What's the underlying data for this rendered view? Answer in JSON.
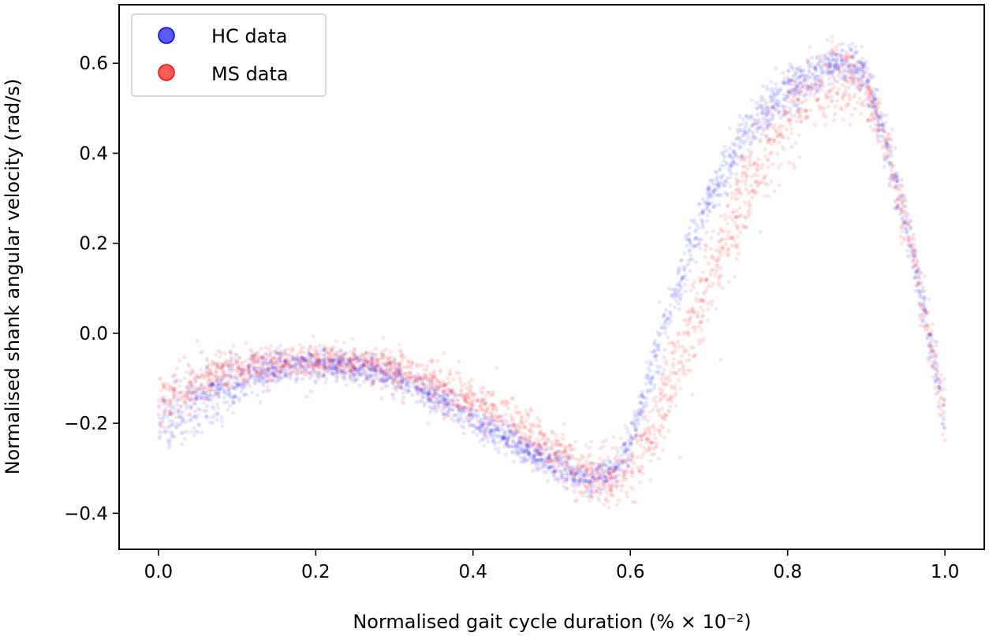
{
  "chart_data": {
    "type": "scatter",
    "xlabel": "Normalised gait cycle duration (% × 10⁻²)",
    "ylabel": "Normalised shank angular velocity (rad/s)",
    "xlim": [
      -0.05,
      1.05
    ],
    "ylim": [
      -0.48,
      0.73
    ],
    "xticks": [
      0.0,
      0.2,
      0.4,
      0.6,
      0.8,
      1.0
    ],
    "xtick_labels": [
      "0.0",
      "0.2",
      "0.4",
      "0.6",
      "0.8",
      "1.0"
    ],
    "yticks": [
      -0.4,
      -0.2,
      0.0,
      0.2,
      0.4,
      0.6
    ],
    "ytick_labels": [
      "−0.4",
      "−0.2",
      "0.0",
      "0.2",
      "0.4",
      "0.6"
    ],
    "legend_position": "top-left",
    "grid": false,
    "series": [
      {
        "name": "HC data",
        "color": "#0000ff",
        "x": [
          0.0,
          0.02,
          0.05,
          0.08,
          0.1,
          0.15,
          0.2,
          0.25,
          0.3,
          0.35,
          0.4,
          0.45,
          0.5,
          0.53,
          0.55,
          0.58,
          0.6,
          0.62,
          0.65,
          0.7,
          0.75,
          0.8,
          0.85,
          0.88,
          0.9,
          0.92,
          0.95,
          0.98,
          1.0
        ],
        "y": [
          -0.2,
          -0.19,
          -0.16,
          -0.13,
          -0.11,
          -0.08,
          -0.07,
          -0.075,
          -0.1,
          -0.14,
          -0.19,
          -0.24,
          -0.29,
          -0.32,
          -0.33,
          -0.3,
          -0.24,
          -0.13,
          0.05,
          0.3,
          0.45,
          0.54,
          0.59,
          0.6,
          0.57,
          0.45,
          0.25,
          0.0,
          -0.2
        ],
        "spread": [
          0.07,
          0.07,
          0.065,
          0.06,
          0.05,
          0.04,
          0.035,
          0.03,
          0.03,
          0.03,
          0.03,
          0.03,
          0.03,
          0.03,
          0.03,
          0.035,
          0.04,
          0.05,
          0.05,
          0.05,
          0.05,
          0.045,
          0.04,
          0.04,
          0.04,
          0.05,
          0.05,
          0.05,
          0.06
        ]
      },
      {
        "name": "MS data",
        "color": "#ff0000",
        "x": [
          0.0,
          0.02,
          0.05,
          0.1,
          0.15,
          0.2,
          0.25,
          0.3,
          0.35,
          0.4,
          0.45,
          0.5,
          0.53,
          0.55,
          0.58,
          0.6,
          0.62,
          0.65,
          0.7,
          0.75,
          0.8,
          0.85,
          0.88,
          0.9,
          0.92,
          0.95,
          0.98,
          1.0
        ],
        "y": [
          -0.16,
          -0.14,
          -0.11,
          -0.08,
          -0.065,
          -0.06,
          -0.065,
          -0.08,
          -0.11,
          -0.15,
          -0.2,
          -0.26,
          -0.3,
          -0.32,
          -0.32,
          -0.3,
          -0.25,
          -0.12,
          0.12,
          0.34,
          0.48,
          0.55,
          0.57,
          0.55,
          0.45,
          0.25,
          0.0,
          -0.18
        ],
        "spread": [
          0.06,
          0.06,
          0.05,
          0.04,
          0.035,
          0.03,
          0.035,
          0.04,
          0.045,
          0.05,
          0.05,
          0.05,
          0.05,
          0.05,
          0.055,
          0.06,
          0.075,
          0.09,
          0.11,
          0.11,
          0.1,
          0.08,
          0.06,
          0.05,
          0.05,
          0.06,
          0.06,
          0.06
        ]
      }
    ]
  }
}
